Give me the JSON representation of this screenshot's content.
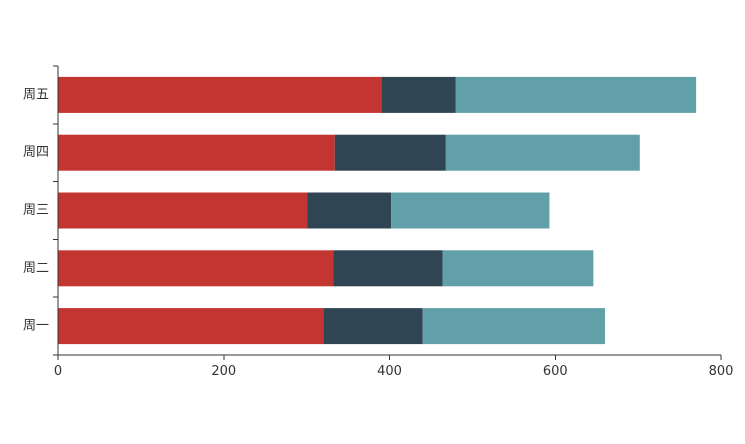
{
  "chart_data": {
    "type": "bar",
    "orientation": "horizontal",
    "stacked": true,
    "categories": [
      "周一",
      "周二",
      "周三",
      "周四",
      "周五"
    ],
    "series": [
      {
        "color": "#c23531",
        "values": [
          320,
          332,
          301,
          334,
          390
        ]
      },
      {
        "color": "#2f4554",
        "values": [
          120,
          132,
          101,
          134,
          90
        ]
      },
      {
        "color": "#61a0a8",
        "values": [
          220,
          182,
          191,
          234,
          290
        ]
      }
    ],
    "xlim": [
      0,
      800
    ],
    "x_ticks": [
      0,
      200,
      400,
      600,
      800
    ],
    "grid": false,
    "legend": "none"
  }
}
